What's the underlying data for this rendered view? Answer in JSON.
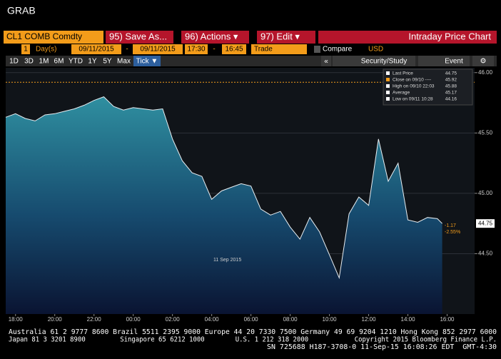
{
  "app": {
    "title": "GRAB"
  },
  "toolbar": {
    "ticker": "CL1 COMB Comdty",
    "buttons": [
      "95) Save As...",
      "96) Actions ▾",
      "97) Edit ▾"
    ],
    "chart_name": "Intraday Price Chart"
  },
  "range_bar": {
    "count": "1",
    "unit": "Day(s)",
    "start_date": "09/11/2015",
    "sep1": "-",
    "end_date": "09/11/2015",
    "start_time": "17:30",
    "sep2": "-",
    "end_time": "16:45",
    "field": "Trade",
    "compare": "Compare",
    "currency": "USD"
  },
  "period_tabs": [
    "1D",
    "3D",
    "1M",
    "6M",
    "YTD",
    "1Y",
    "5Y",
    "Max",
    "Tick ▼"
  ],
  "study_buttons": [
    "Security/Study",
    "Event"
  ],
  "chart_data": {
    "type": "area",
    "color": "#2f8fa0",
    "annotation": "11 Sep 2015",
    "x": [
      17.5,
      18,
      18.5,
      19,
      19.5,
      20,
      20.5,
      21,
      21.5,
      22,
      22.5,
      23,
      23.5,
      24,
      24.5,
      25,
      25.5,
      26,
      26.5,
      27,
      27.5,
      28,
      28.5,
      29,
      29.5,
      30,
      30.5,
      31,
      31.5,
      32,
      32.5,
      33,
      33.5,
      34,
      34.5,
      35,
      35.5,
      36,
      36.5,
      37,
      37.5,
      38,
      38.5,
      39,
      39.5,
      39.75
    ],
    "values": [
      45.63,
      45.66,
      45.62,
      45.6,
      45.65,
      45.66,
      45.68,
      45.7,
      45.73,
      45.77,
      45.8,
      45.72,
      45.69,
      45.71,
      45.7,
      45.69,
      45.7,
      45.45,
      45.27,
      45.17,
      45.14,
      44.95,
      45.02,
      45.05,
      45.08,
      45.06,
      44.87,
      44.82,
      44.85,
      44.72,
      44.62,
      44.8,
      44.68,
      44.49,
      44.3,
      44.83,
      44.97,
      44.9,
      45.45,
      45.1,
      45.25,
      44.78,
      44.76,
      44.8,
      44.79,
      44.75
    ],
    "xlim": [
      17.5,
      41.4
    ],
    "xticks": [
      {
        "value": 18,
        "label": "18:00"
      },
      {
        "value": 20,
        "label": "20:00"
      },
      {
        "value": 22,
        "label": "22:00"
      },
      {
        "value": 24,
        "label": "00:00"
      },
      {
        "value": 26,
        "label": "02:00"
      },
      {
        "value": 28,
        "label": "04:00"
      },
      {
        "value": 30,
        "label": "06:00"
      },
      {
        "value": 32,
        "label": "08:00"
      },
      {
        "value": 34,
        "label": "10:00"
      },
      {
        "value": 36,
        "label": "12:00"
      },
      {
        "value": 38,
        "label": "14:00"
      },
      {
        "value": 40,
        "label": "16:00"
      }
    ],
    "ylim": [
      44.0,
      46.04
    ],
    "yticks": [
      {
        "value": 44.5,
        "label": "44.50"
      },
      {
        "value": 45,
        "label": "45.00"
      },
      {
        "value": 45.5,
        "label": "45.50"
      },
      {
        "value": 46,
        "label": "46.00"
      }
    ],
    "grid": true,
    "legend": [
      {
        "label": "Last Price",
        "value": 44.75
      },
      {
        "label": "Close on 09/10 ----",
        "value": 45.92
      },
      {
        "label": "High on 09/10 22:03",
        "value": 45.88
      },
      {
        "label": "Average",
        "value": 45.17
      },
      {
        "label": "Low on 09/11 10:28",
        "value": 44.16
      }
    ],
    "last_change": [
      "-1.17",
      "-2.55%"
    ]
  },
  "footer": [
    "Australia 61 2 9777 8600 Brazil 5511 2395 9000 Europe 44 20 7330 7500 Germany 49 69 9204 1210 Hong Kong 852 2977 6000",
    "Japan 81 3 3201 8900         Singapore 65 6212 1000        U.S. 1 212 318 2000            Copyright 2015 Bloomberg Finance L.P.",
    "SN 725688 H187-3708-0 11-Sep-15 16:08:26 EDT  GMT-4:30"
  ]
}
